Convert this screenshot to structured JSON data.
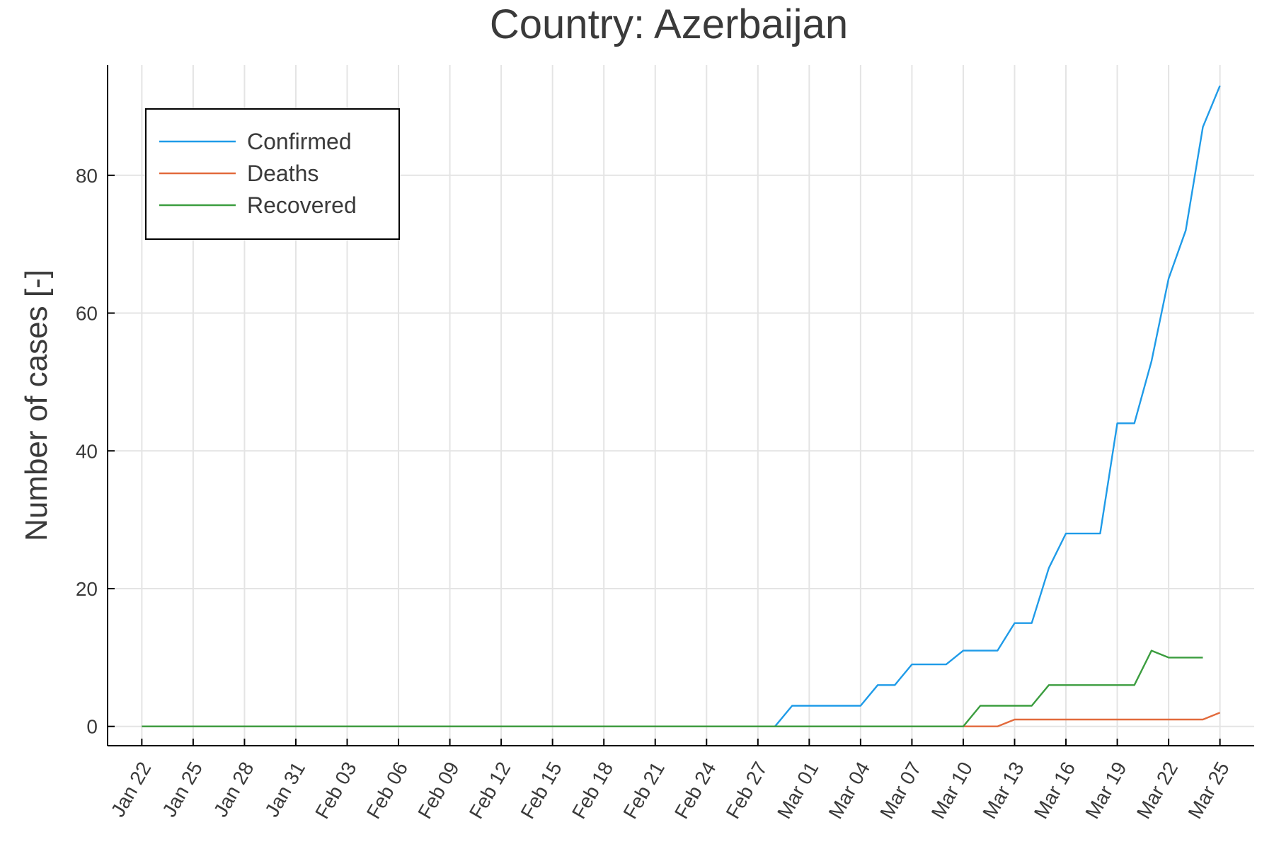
{
  "chart_data": {
    "type": "line",
    "title": "Country: Azerbaijan",
    "xlabel": "",
    "ylabel": "Number of cases [-]",
    "x_tick_labels": [
      "Jan 22",
      "Jan 25",
      "Jan 28",
      "Jan 31",
      "Feb 03",
      "Feb 06",
      "Feb 09",
      "Feb 12",
      "Feb 15",
      "Feb 18",
      "Feb 21",
      "Feb 24",
      "Feb 27",
      "Mar 01",
      "Mar 04",
      "Mar 07",
      "Mar 10",
      "Mar 13",
      "Mar 16",
      "Mar 19",
      "Mar 22",
      "Mar 25"
    ],
    "y_ticks": [
      0,
      20,
      40,
      60,
      80
    ],
    "xlim": [
      "2020-01-20",
      "2020-03-27"
    ],
    "ylim": [
      -2.8,
      96
    ],
    "grid": true,
    "legend_position": "top-left",
    "series": [
      {
        "name": "Confirmed",
        "color": "#1f9be8",
        "x": [
          "2020-01-22",
          "2020-02-28",
          "2020-02-29",
          "2020-03-04",
          "2020-03-05",
          "2020-03-06",
          "2020-03-07",
          "2020-03-09",
          "2020-03-10",
          "2020-03-12",
          "2020-03-13",
          "2020-03-14",
          "2020-03-15",
          "2020-03-16",
          "2020-03-18",
          "2020-03-19",
          "2020-03-20",
          "2020-03-21",
          "2020-03-22",
          "2020-03-23",
          "2020-03-24",
          "2020-03-25"
        ],
        "y": [
          0,
          0,
          3,
          3,
          6,
          6,
          9,
          9,
          11,
          11,
          15,
          15,
          23,
          28,
          28,
          44,
          44,
          53,
          65,
          72,
          87,
          93
        ]
      },
      {
        "name": "Deaths",
        "color": "#e26a3c",
        "x": [
          "2020-01-22",
          "2020-03-12",
          "2020-03-13",
          "2020-03-24",
          "2020-03-25"
        ],
        "y": [
          0,
          0,
          1,
          1,
          2
        ]
      },
      {
        "name": "Recovered",
        "color": "#3b9d3f",
        "x": [
          "2020-01-22",
          "2020-03-10",
          "2020-03-11",
          "2020-03-14",
          "2020-03-15",
          "2020-03-20",
          "2020-03-21",
          "2020-03-22",
          "2020-03-24"
        ],
        "y": [
          0,
          0,
          3,
          3,
          6,
          6,
          11,
          10,
          10
        ]
      }
    ]
  }
}
